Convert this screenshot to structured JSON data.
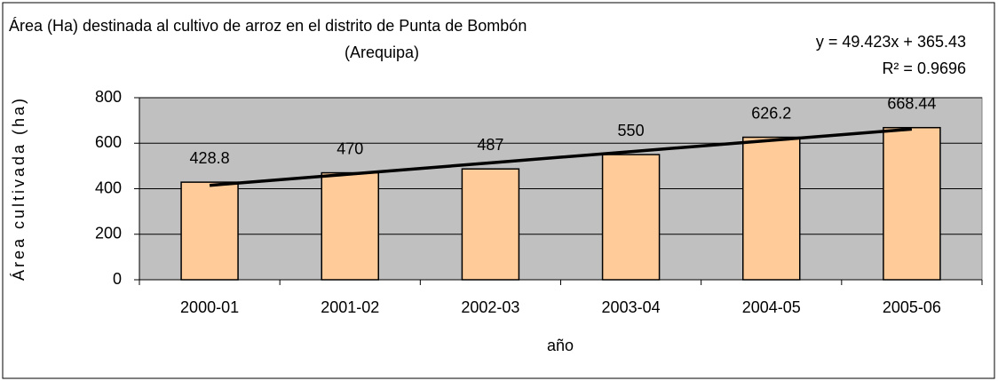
{
  "chart_data": {
    "type": "bar",
    "title": "Área (Ha) destinada al cultivo de arroz en el distrito de Punta de Bombón",
    "subtitle": "(Arequipa)",
    "x_label": "año",
    "y_label": "Área cultivada (ha)",
    "categories": [
      "2000-01",
      "2001-02",
      "2002-03",
      "2003-04",
      "2004-05",
      "2005-06"
    ],
    "values": [
      428.8,
      470,
      487,
      550,
      626.2,
      668.44
    ],
    "color": "#ffcc99",
    "ylim": [
      0,
      800
    ],
    "yticks": [
      0,
      200,
      400,
      600,
      800
    ],
    "grid": true,
    "trendline": {
      "equation": "y = 49.423x + 365.43",
      "r2": "R² = 0.9696",
      "values": [
        414.853,
        464.276,
        513.699,
        563.122,
        612.545,
        661.968
      ],
      "color": "#000000"
    }
  }
}
